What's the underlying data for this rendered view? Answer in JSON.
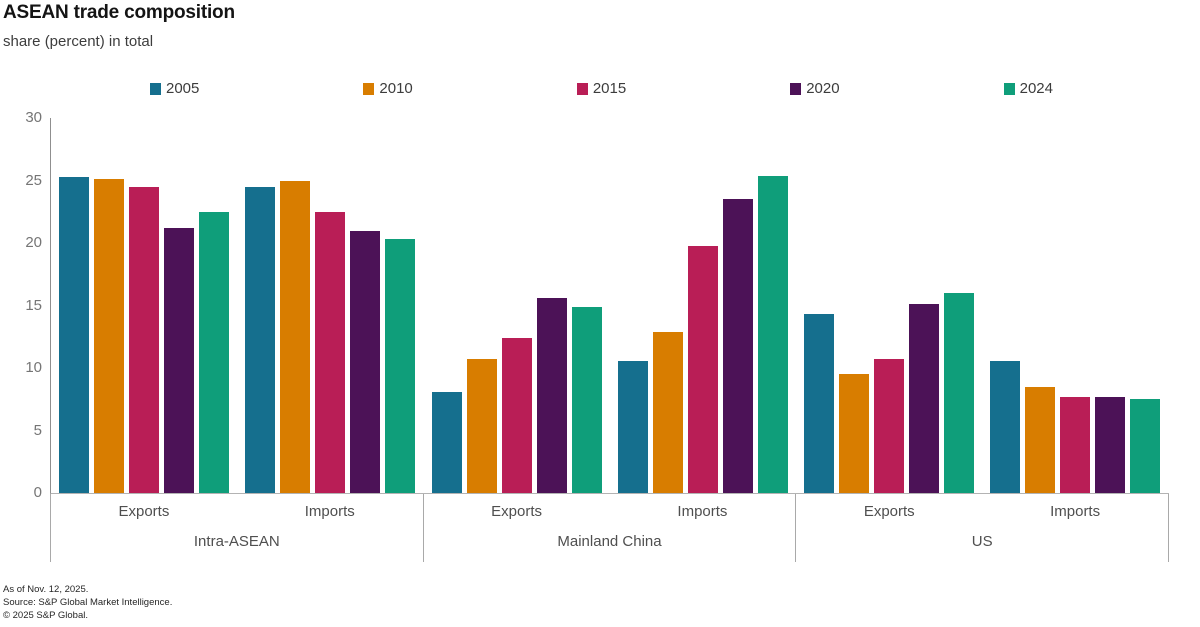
{
  "header": {
    "title": "ASEAN trade composition",
    "subtitle": "share (percent) in total"
  },
  "legend": [
    {
      "label": "2005",
      "color": "#156f8e"
    },
    {
      "label": "2010",
      "color": "#d87d00"
    },
    {
      "label": "2015",
      "color": "#b91e56"
    },
    {
      "label": "2020",
      "color": "#4c1257"
    },
    {
      "label": "2024",
      "color": "#0f9e7a"
    }
  ],
  "chart_data": {
    "type": "bar",
    "title": "ASEAN trade composition",
    "subtitle": "share (percent) in total",
    "ylabel": "share (percent) in total",
    "ylim": [
      0,
      30
    ],
    "yticks": [
      0,
      5,
      10,
      15,
      20,
      25,
      30
    ],
    "grid": false,
    "legend_position": "top",
    "series_names": [
      "2005",
      "2010",
      "2015",
      "2020",
      "2024"
    ],
    "series_colors": [
      "#156f8e",
      "#d87d00",
      "#b91e56",
      "#4c1257",
      "#0f9e7a"
    ],
    "groups": [
      {
        "label": "Intra-ASEAN",
        "subgroups": [
          {
            "label": "Exports",
            "values": [
              25.3,
              25.1,
              24.5,
              21.2,
              22.5
            ]
          },
          {
            "label": "Imports",
            "values": [
              24.5,
              25.0,
              22.5,
              21.0,
              20.3
            ]
          }
        ]
      },
      {
        "label": "Mainland China",
        "subgroups": [
          {
            "label": "Exports",
            "values": [
              8.1,
              10.7,
              12.4,
              15.6,
              14.9
            ]
          },
          {
            "label": "Imports",
            "values": [
              10.6,
              12.9,
              19.8,
              23.5,
              25.4
            ]
          }
        ]
      },
      {
        "label": "US",
        "subgroups": [
          {
            "label": "Exports",
            "values": [
              14.3,
              9.5,
              10.7,
              15.1,
              16.0
            ]
          },
          {
            "label": "Imports",
            "values": [
              10.6,
              8.5,
              7.7,
              7.7,
              7.5
            ]
          }
        ]
      }
    ]
  },
  "footer": {
    "line1": "As of Nov. 12, 2025.",
    "line2": "Source: S&P Global Market Intelligence.",
    "line3": "© 2025 S&P Global."
  }
}
